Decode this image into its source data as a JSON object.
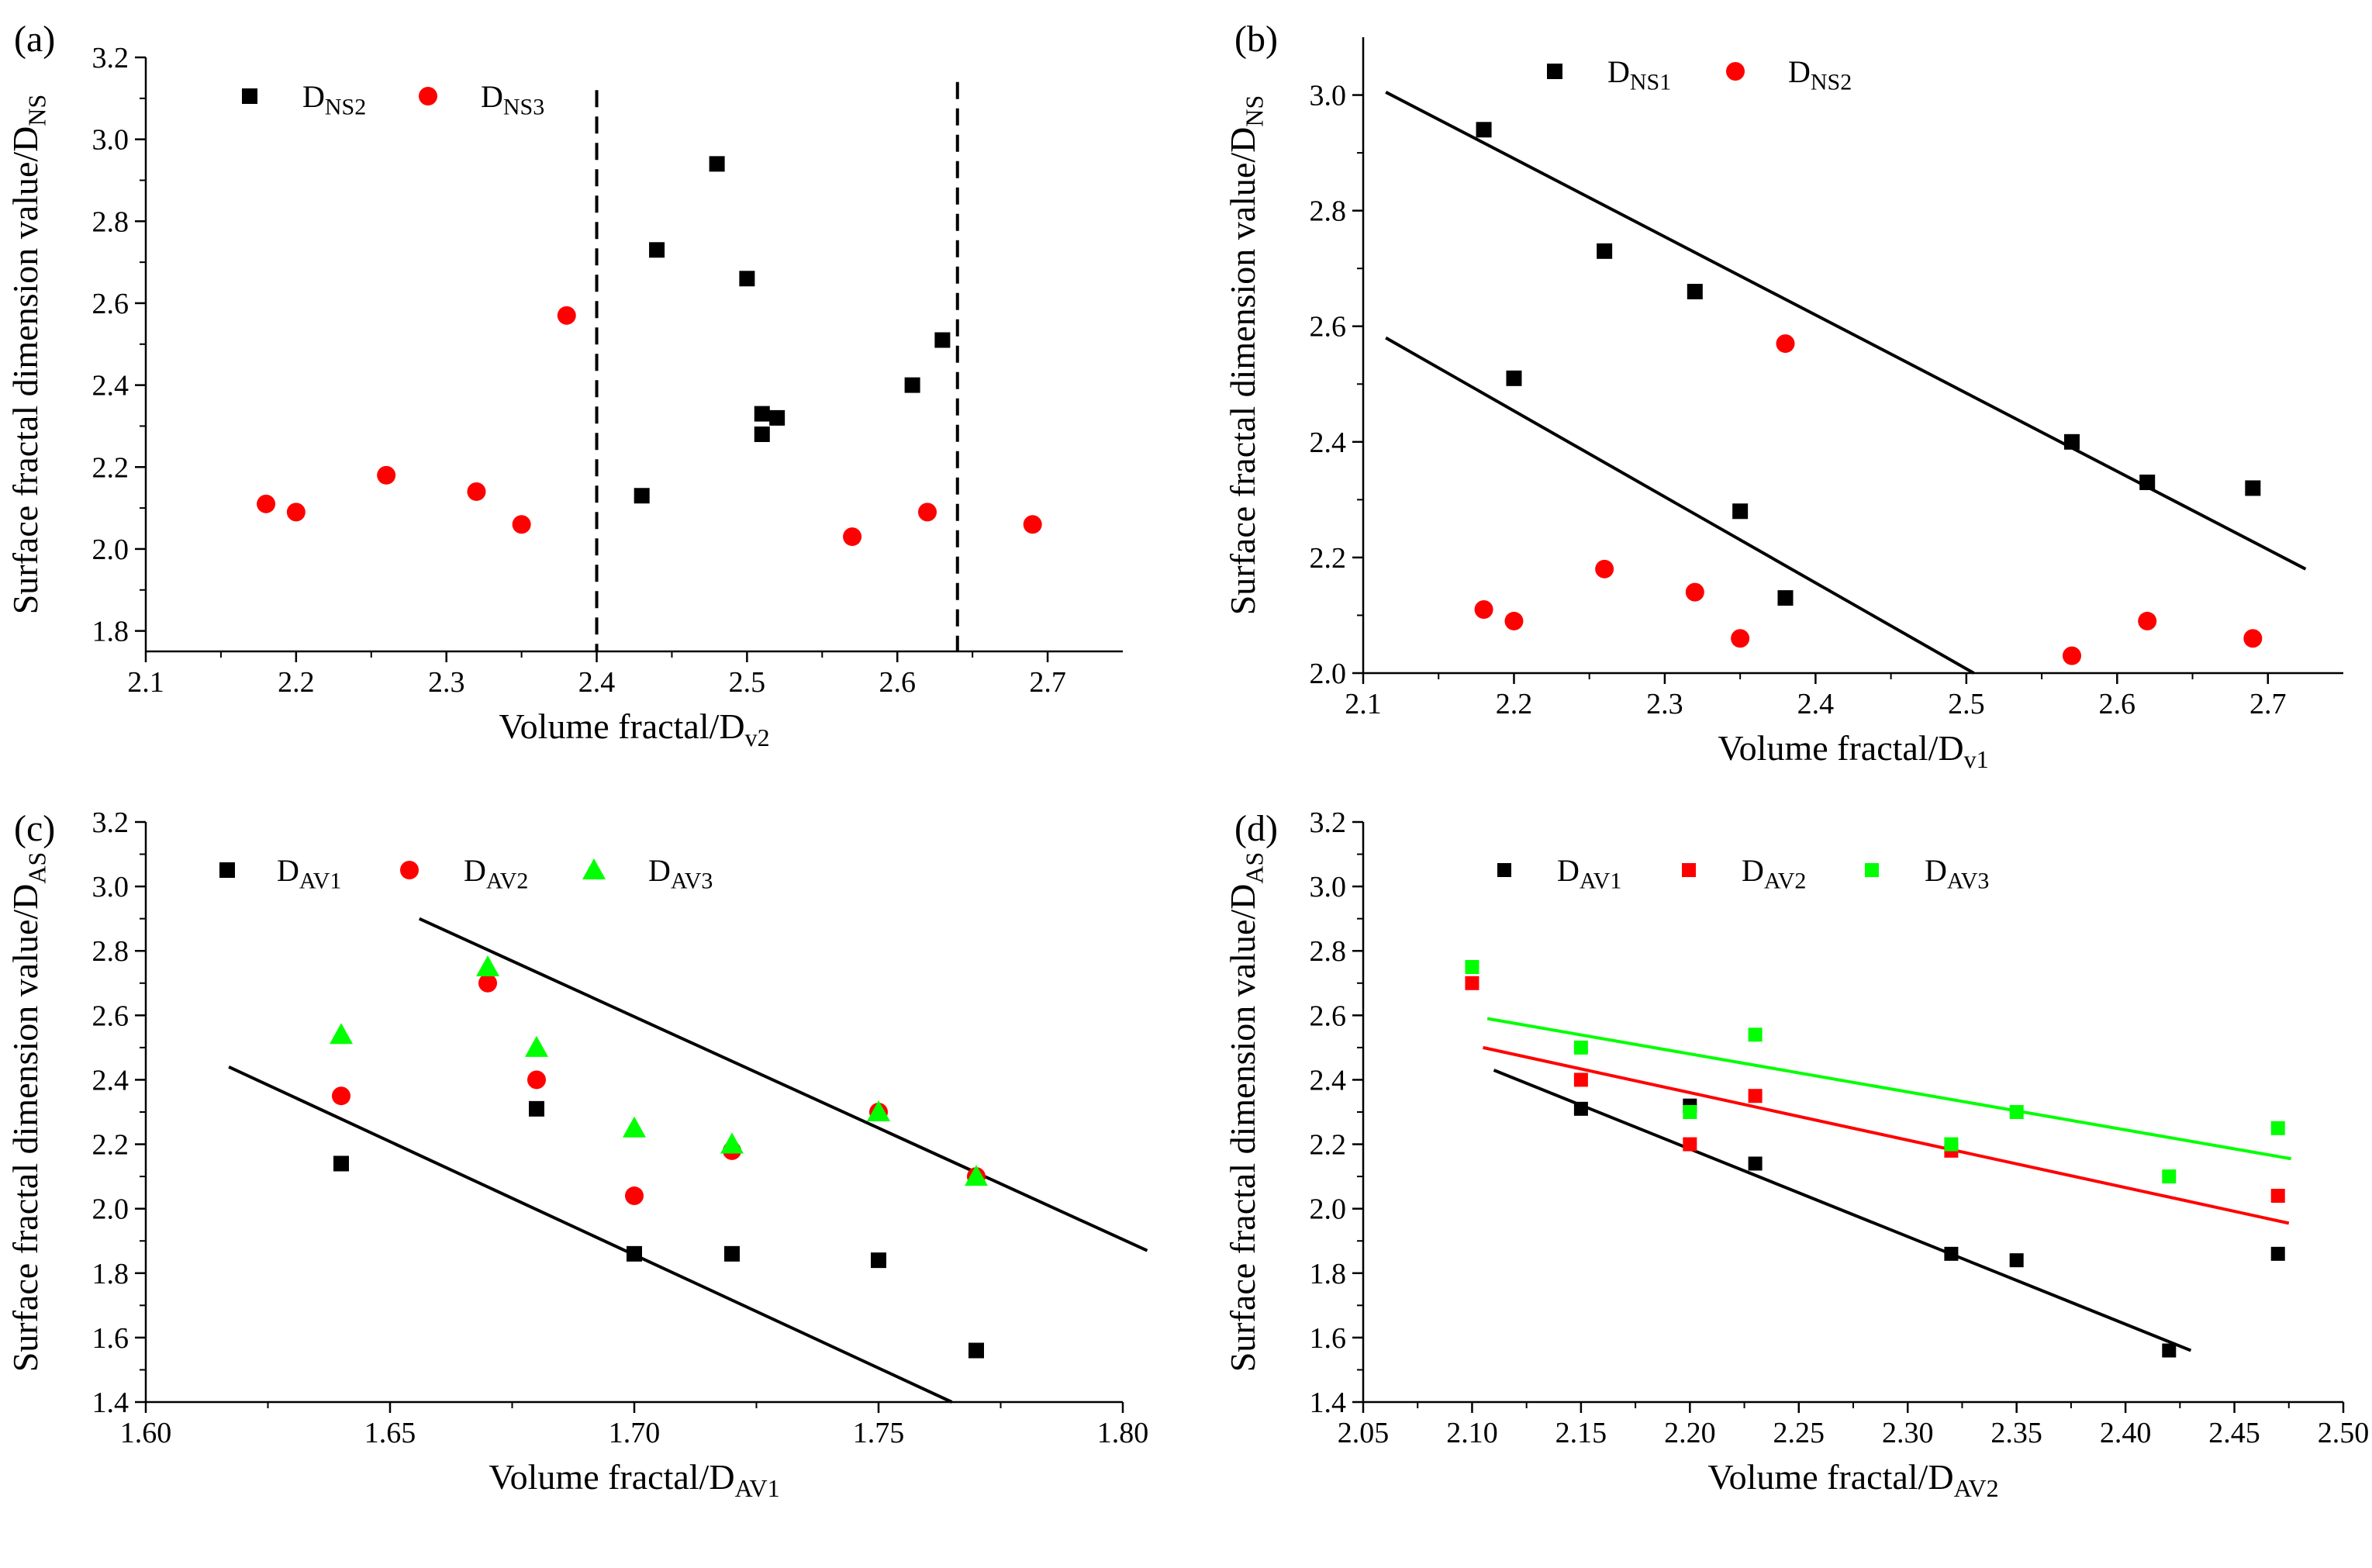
{
  "chart_data": [
    {
      "type": "scatter",
      "panel_label": "(a)",
      "xlabel": {
        "main": "Volume fractal/D",
        "sub": "v2"
      },
      "ylabel": {
        "main": "Surface fractal dimension value/D",
        "sub": "NS"
      },
      "xlim": [
        2.1,
        2.75
      ],
      "ylim": [
        1.75,
        3.2
      ],
      "xticks": [
        "2.1",
        "2.2",
        "2.3",
        "2.4",
        "2.5",
        "2.6",
        "2.7"
      ],
      "yticks": [
        "1.8",
        "2.0",
        "2.2",
        "2.4",
        "2.6",
        "2.8",
        "3.0",
        "3.2"
      ],
      "legend_position": "top-left",
      "series": [
        {
          "name": "D",
          "sub": "NS2",
          "marker": "square",
          "color": "#000000",
          "x": [
            2.43,
            2.44,
            2.48,
            2.5,
            2.51,
            2.51,
            2.52,
            2.61,
            2.63
          ],
          "y": [
            2.13,
            2.73,
            2.94,
            2.66,
            2.33,
            2.28,
            2.32,
            2.4,
            2.51
          ]
        },
        {
          "name": "D",
          "sub": "NS3",
          "marker": "circle",
          "color": "#ff0000",
          "x": [
            2.18,
            2.2,
            2.26,
            2.32,
            2.35,
            2.38,
            2.57,
            2.62,
            2.69
          ],
          "y": [
            2.11,
            2.09,
            2.18,
            2.14,
            2.06,
            2.57,
            2.03,
            2.09,
            2.06
          ]
        }
      ],
      "vlines": [
        {
          "x": 2.4,
          "y_from": 1.75,
          "y_to": 3.12,
          "style": "dashed"
        },
        {
          "x": 2.64,
          "y_from": 1.75,
          "y_to": 3.14,
          "style": "dashed"
        }
      ],
      "fit_lines": []
    },
    {
      "type": "scatter",
      "panel_label": "(b)",
      "xlabel": {
        "main": "Volume fractal/D",
        "sub": "v1"
      },
      "ylabel": {
        "main": "Surface fractal dimension value/D",
        "sub": "NS"
      },
      "xlim": [
        2.1,
        2.75
      ],
      "ylim": [
        2.0,
        3.1
      ],
      "xticks": [
        "2.1",
        "2.2",
        "2.3",
        "2.4",
        "2.5",
        "2.6",
        "2.7"
      ],
      "yticks": [
        "2.0",
        "2.2",
        "2.4",
        "2.6",
        "2.8",
        "3.0"
      ],
      "legend_position": "top-left",
      "series": [
        {
          "name": "D",
          "sub": "NS1",
          "marker": "square",
          "color": "#000000",
          "x": [
            2.18,
            2.2,
            2.26,
            2.32,
            2.35,
            2.38,
            2.57,
            2.62,
            2.69
          ],
          "y": [
            2.94,
            2.51,
            2.73,
            2.66,
            2.28,
            2.13,
            2.4,
            2.33,
            2.32
          ]
        },
        {
          "name": "D",
          "sub": "NS2",
          "marker": "circle",
          "color": "#ff0000",
          "x": [
            2.18,
            2.2,
            2.26,
            2.32,
            2.35,
            2.38,
            2.57,
            2.62,
            2.69
          ],
          "y": [
            2.11,
            2.09,
            2.18,
            2.14,
            2.06,
            2.57,
            2.03,
            2.09,
            2.06
          ]
        }
      ],
      "vlines": [],
      "fit_lines": [
        {
          "color": "#000000",
          "x1": 2.115,
          "y1": 3.005,
          "x2": 2.725,
          "y2": 2.18
        },
        {
          "color": "#000000",
          "x1": 2.115,
          "y1": 2.58,
          "x2": 2.505,
          "y2": 2.0
        }
      ]
    },
    {
      "type": "scatter",
      "panel_label": "(c)",
      "xlabel": {
        "main": "Volume fractal/D",
        "sub": "AV1"
      },
      "ylabel": {
        "main": "Surface fractal dimension value/D",
        "sub": "AS"
      },
      "xlim": [
        1.6,
        1.8
      ],
      "ylim": [
        1.4,
        3.2
      ],
      "xticks": [
        "1.60",
        "1.65",
        "1.70",
        "1.75",
        "1.80"
      ],
      "yticks": [
        "1.4",
        "1.6",
        "1.8",
        "2.0",
        "2.2",
        "2.4",
        "2.6",
        "2.8",
        "3.0",
        "3.2"
      ],
      "legend_position": "top-left",
      "series": [
        {
          "name": "D",
          "sub": "AV1",
          "marker": "square",
          "color": "#000000",
          "x": [
            1.64,
            1.68,
            1.7,
            1.72,
            1.75,
            1.77
          ],
          "y": [
            2.14,
            2.31,
            1.86,
            1.86,
            1.84,
            1.56
          ]
        },
        {
          "name": "D",
          "sub": "AV2",
          "marker": "circle",
          "color": "#ff0000",
          "x": [
            1.64,
            1.67,
            1.68,
            1.7,
            1.72,
            1.75,
            1.77
          ],
          "y": [
            2.35,
            2.7,
            2.4,
            2.04,
            2.18,
            2.3,
            2.1
          ]
        },
        {
          "name": "D",
          "sub": "AV3",
          "marker": "triangle",
          "color": "#00ff00",
          "x": [
            1.64,
            1.67,
            1.68,
            1.7,
            1.72,
            1.75,
            1.77
          ],
          "y": [
            2.54,
            2.75,
            2.5,
            2.25,
            2.2,
            2.3,
            2.1
          ]
        }
      ],
      "vlines": [],
      "fit_lines": [
        {
          "color": "#000000",
          "x1": 1.656,
          "y1": 2.9,
          "x2": 1.805,
          "y2": 1.87
        },
        {
          "color": "#000000",
          "x1": 1.617,
          "y1": 2.44,
          "x2": 1.765,
          "y2": 1.4
        }
      ]
    },
    {
      "type": "scatter",
      "panel_label": "(d)",
      "xlabel": {
        "main": "Volume fractal/D",
        "sub": "AV2"
      },
      "ylabel": {
        "main": "Surface fractal dimension value/D",
        "sub": "AS"
      },
      "xlim": [
        2.05,
        2.5
      ],
      "ylim": [
        1.4,
        3.2
      ],
      "xticks": [
        "2.05",
        "2.10",
        "2.15",
        "2.20",
        "2.25",
        "2.30",
        "2.35",
        "2.40",
        "2.45",
        "2.50"
      ],
      "yticks": [
        "1.4",
        "1.6",
        "1.8",
        "2.0",
        "2.2",
        "2.4",
        "2.6",
        "2.8",
        "3.0",
        "3.2"
      ],
      "legend_position": "top-left",
      "series": [
        {
          "name": "D",
          "sub": "AV1",
          "marker": "square-small",
          "color": "#000000",
          "x": [
            2.15,
            2.2,
            2.23,
            2.32,
            2.35,
            2.42,
            2.47
          ],
          "y": [
            2.31,
            2.32,
            2.14,
            1.86,
            1.84,
            1.56,
            1.86
          ]
        },
        {
          "name": "D",
          "sub": "AV2",
          "marker": "square-small",
          "color": "#ff0000",
          "x": [
            2.1,
            2.15,
            2.2,
            2.23,
            2.32,
            2.47
          ],
          "y": [
            2.7,
            2.4,
            2.2,
            2.35,
            2.18,
            2.04
          ]
        },
        {
          "name": "D",
          "sub": "AV3",
          "marker": "square-small",
          "color": "#00ff00",
          "x": [
            2.1,
            2.15,
            2.2,
            2.23,
            2.32,
            2.35,
            2.42,
            2.47
          ],
          "y": [
            2.75,
            2.5,
            2.3,
            2.54,
            2.2,
            2.3,
            2.1,
            2.25
          ]
        }
      ],
      "vlines": [],
      "fit_lines": [
        {
          "color": "#000000",
          "x1": 2.11,
          "y1": 2.43,
          "x2": 2.43,
          "y2": 1.56
        },
        {
          "color": "#ff0000",
          "x1": 2.105,
          "y1": 2.5,
          "x2": 2.475,
          "y2": 1.955
        },
        {
          "color": "#00ff00",
          "x1": 2.107,
          "y1": 2.59,
          "x2": 2.476,
          "y2": 2.155
        }
      ]
    }
  ]
}
